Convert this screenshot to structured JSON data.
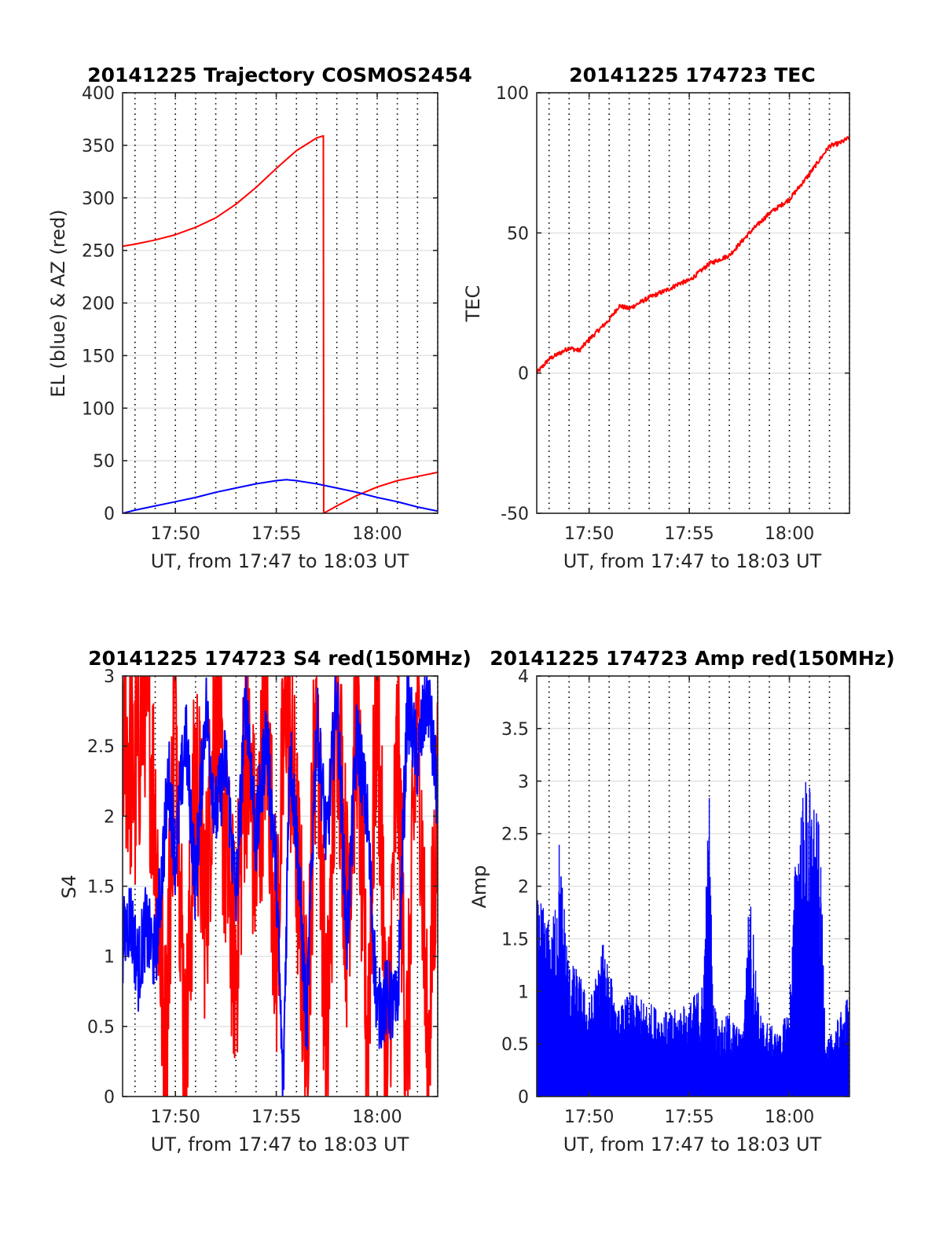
{
  "chart_data": [
    {
      "type": "line",
      "title": "20141225 Trajectory COSMOS2454",
      "xlabel": "UT, from 17:47 to 18:03 UT",
      "ylabel": "EL (blue) & AZ (red)",
      "xlim": [
        "17:47:23",
        "18:03:00"
      ],
      "ylim": [
        0,
        400
      ],
      "x_ticks": [
        "17:50",
        "17:55",
        "18:00"
      ],
      "y_ticks": [
        "0",
        "50",
        "100",
        "150",
        "200",
        "250",
        "300",
        "350",
        "400"
      ],
      "grid": true,
      "series": [
        {
          "color": "#ff0000",
          "x": [
            "17:47:23",
            "17:48:00",
            "17:49:00",
            "17:50:00",
            "17:51:00",
            "17:52:00",
            "17:53:00",
            "17:54:00",
            "17:55:00",
            "17:56:00",
            "17:57:00",
            "17:57:20",
            "17:57:21",
            "17:58:00",
            "17:59:00",
            "18:00:00",
            "18:01:00",
            "18:02:00",
            "18:03:00"
          ],
          "y": [
            254,
            256,
            260,
            265,
            272,
            281,
            294,
            310,
            328,
            345,
            357,
            359,
            0,
            7,
            17,
            25,
            31,
            35,
            39
          ]
        },
        {
          "color": "#0000ff",
          "x": [
            "17:47:23",
            "17:48:00",
            "17:49:00",
            "17:50:00",
            "17:51:00",
            "17:52:00",
            "17:53:00",
            "17:54:00",
            "17:55:00",
            "17:55:30",
            "17:56:00",
            "17:57:00",
            "17:58:00",
            "17:59:00",
            "18:00:00",
            "18:01:00",
            "18:02:00",
            "18:03:00"
          ],
          "y": [
            0,
            3,
            7,
            11,
            15,
            20,
            24,
            28,
            31,
            32,
            31,
            28,
            24,
            20,
            15,
            11,
            6,
            2
          ]
        }
      ]
    },
    {
      "type": "line",
      "title": "20141225 174723 TEC",
      "xlabel": "UT, from 17:47 to 18:03 UT",
      "ylabel": "TEC",
      "xlim": [
        "17:47:23",
        "18:03:00"
      ],
      "ylim": [
        -50,
        100
      ],
      "x_ticks": [
        "17:50",
        "17:55",
        "18:00"
      ],
      "y_ticks": [
        "-50",
        "0",
        "50",
        "100"
      ],
      "grid": true,
      "series": [
        {
          "color": "#ff0000",
          "x": [
            "17:47:23",
            "17:48:00",
            "17:49:00",
            "17:49:30",
            "17:50:00",
            "17:51:00",
            "17:51:30",
            "17:52:00",
            "17:53:00",
            "17:54:00",
            "17:54:30",
            "17:55:00",
            "17:56:00",
            "17:57:00",
            "17:58:00",
            "17:59:00",
            "18:00:00",
            "18:01:00",
            "18:02:00",
            "18:02:30",
            "18:03:00"
          ],
          "y": [
            0,
            5,
            9,
            8,
            12,
            19,
            24,
            23,
            27,
            30,
            32,
            33,
            39,
            42,
            50,
            57,
            62,
            71,
            81,
            82,
            84
          ]
        }
      ]
    },
    {
      "type": "line",
      "title": "20141225 174723 S4 red(150MHz)",
      "xlabel": "UT, from 17:47 to 18:03 UT",
      "ylabel": "S4",
      "xlim": [
        "17:47:23",
        "18:03:00"
      ],
      "ylim": [
        0,
        3
      ],
      "x_ticks": [
        "17:50",
        "17:55",
        "18:00"
      ],
      "y_ticks": [
        "0",
        "0.5",
        "1",
        "1.5",
        "2",
        "2.5",
        "3"
      ],
      "grid": true,
      "series": [
        {
          "color": "#ff0000",
          "x": [
            "17:47:23",
            "17:48:00",
            "17:48:30",
            "17:49:00",
            "17:49:30",
            "17:50:00",
            "17:50:30",
            "17:51:00",
            "17:51:30",
            "17:52:00",
            "17:52:30",
            "17:53:00",
            "17:53:30",
            "17:54:00",
            "17:54:30",
            "17:55:00",
            "17:55:30",
            "17:56:00",
            "17:56:30",
            "17:57:00",
            "17:57:30",
            "17:58:00",
            "17:58:30",
            "17:59:00",
            "17:59:30",
            "18:00:00",
            "18:00:30",
            "18:01:00",
            "18:01:30",
            "18:02:00",
            "18:02:30",
            "18:03:00"
          ],
          "y": [
            2.7,
            2.2,
            3.0,
            2.0,
            0.2,
            3.0,
            0.1,
            2.4,
            1.3,
            3.0,
            1.7,
            0.9,
            2.6,
            1.6,
            2.8,
            1.0,
            3.0,
            1.8,
            0.4,
            3.0,
            0.2,
            3.0,
            1.3,
            2.8,
            0.3,
            3.0,
            0.1,
            2.5,
            0.2,
            3.0,
            0.1,
            2.2
          ]
        },
        {
          "color": "#0000ff",
          "x": [
            "17:47:23",
            "17:47:45",
            "17:48:10",
            "17:48:30",
            "17:49:00",
            "17:49:20",
            "17:49:40",
            "17:50:00",
            "17:50:30",
            "17:51:00",
            "17:51:30",
            "17:52:00",
            "17:52:30",
            "17:53:00",
            "17:53:30",
            "17:54:00",
            "17:54:30",
            "17:55:00",
            "17:55:20",
            "17:55:40",
            "17:56:00",
            "17:56:30",
            "17:57:00",
            "17:57:30",
            "17:58:00",
            "17:58:30",
            "17:59:00",
            "17:59:30",
            "18:00:00",
            "18:00:30",
            "18:01:00",
            "18:01:30",
            "18:02:00",
            "18:02:30",
            "18:03:00"
          ],
          "y": [
            1.1,
            1.3,
            0.9,
            1.2,
            1.0,
            1.6,
            2.3,
            1.7,
            2.6,
            1.5,
            2.8,
            2.0,
            2.4,
            1.4,
            2.9,
            1.8,
            2.6,
            1.6,
            0.0,
            2.5,
            1.9,
            0.5,
            2.7,
            1.8,
            2.9,
            1.1,
            2.6,
            2.0,
            0.6,
            0.7,
            0.6,
            2.8,
            2.4,
            2.9,
            2.1
          ]
        }
      ]
    },
    {
      "type": "line",
      "title": "20141225 174723 Amp red(150MHz)",
      "xlabel": "UT, from 17:47 to 18:03 UT",
      "ylabel": "Amp",
      "xlim": [
        "17:47:23",
        "18:03:00"
      ],
      "ylim": [
        0,
        4
      ],
      "x_ticks": [
        "17:50",
        "17:55",
        "18:00"
      ],
      "y_ticks": [
        "0",
        "0.5",
        "1",
        "1.5",
        "2",
        "2.5",
        "3",
        "3.5",
        "4"
      ],
      "grid": true,
      "series": [
        {
          "color": "#0000ff",
          "x": [
            "17:47:23",
            "17:47:45",
            "17:48:10",
            "17:48:30",
            "17:49:00",
            "17:49:30",
            "17:50:00",
            "17:50:30",
            "17:50:50",
            "17:51:20",
            "17:52:00",
            "17:53:00",
            "17:54:00",
            "17:55:00",
            "17:55:40",
            "17:56:00",
            "17:56:10",
            "17:56:30",
            "17:57:00",
            "17:57:40",
            "17:58:00",
            "17:58:10",
            "17:58:30",
            "17:59:00",
            "17:59:30",
            "18:00:00",
            "18:00:20",
            "18:00:50",
            "18:01:10",
            "18:01:30",
            "18:01:50",
            "18:02:20",
            "18:03:00"
          ],
          "y": [
            1.9,
            1.8,
            1.6,
            2.5,
            1.3,
            1.2,
            0.9,
            1.3,
            1.6,
            0.8,
            1.0,
            0.9,
            0.8,
            0.9,
            1.1,
            3.0,
            1.0,
            0.7,
            0.8,
            0.6,
            2.0,
            1.7,
            0.8,
            0.7,
            0.6,
            0.9,
            2.5,
            3.1,
            2.9,
            2.6,
            0.5,
            0.7,
            1.0
          ]
        }
      ]
    }
  ]
}
